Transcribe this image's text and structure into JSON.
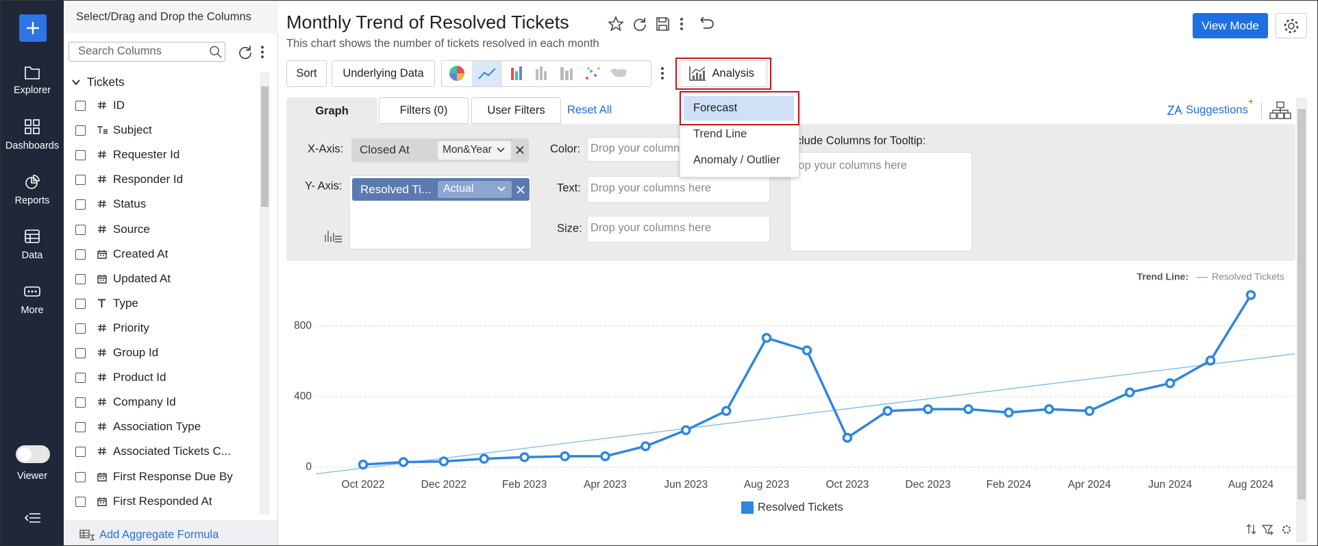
{
  "nav": {
    "items": [
      "Explorer",
      "Dashboards",
      "Reports",
      "Data",
      "More"
    ],
    "viewer": "Viewer"
  },
  "columns_panel": {
    "title": "Select/Drag and Drop the Columns",
    "search_placeholder": "Search Columns",
    "table": "Tickets",
    "columns": [
      {
        "kind": "number",
        "name": "ID"
      },
      {
        "kind": "text",
        "name": "Subject"
      },
      {
        "kind": "number",
        "name": "Requester Id"
      },
      {
        "kind": "number",
        "name": "Responder Id"
      },
      {
        "kind": "number",
        "name": "Status"
      },
      {
        "kind": "number",
        "name": "Source"
      },
      {
        "kind": "date",
        "name": "Created At"
      },
      {
        "kind": "date",
        "name": "Updated At"
      },
      {
        "kind": "string",
        "name": "Type"
      },
      {
        "kind": "number",
        "name": "Priority"
      },
      {
        "kind": "number",
        "name": "Group Id"
      },
      {
        "kind": "number",
        "name": "Product Id"
      },
      {
        "kind": "number",
        "name": "Company Id"
      },
      {
        "kind": "number",
        "name": "Association Type"
      },
      {
        "kind": "number",
        "name": "Associated Tickets C..."
      },
      {
        "kind": "date",
        "name": "First Response Due By"
      },
      {
        "kind": "date",
        "name": "First Responded At"
      }
    ],
    "footer": "Add Aggregate Formula"
  },
  "header": {
    "title": "Monthly Trend of Resolved Tickets",
    "subtitle": "This chart shows the number of tickets resolved in each month",
    "view_mode": "View Mode"
  },
  "toolbar": {
    "sort": "Sort",
    "underlying": "Underlying Data",
    "analysis": "Analysis"
  },
  "tabs": {
    "graph": "Graph",
    "filters": "Filters (0)",
    "user_filters": "User Filters",
    "reset": "Reset All",
    "suggestions": "Suggestions"
  },
  "config": {
    "x_axis": {
      "label": "X-Axis:",
      "column": "Closed At",
      "function": "Mon&Year"
    },
    "y_axis": {
      "label": "Y- Axis:",
      "column": "Resolved Ti...",
      "function": "Actual"
    },
    "color": {
      "label": "Color:",
      "placeholder": "Drop your columns here"
    },
    "text": {
      "label": "Text:",
      "placeholder": "Drop your columns here"
    },
    "size": {
      "label": "Size:",
      "placeholder": "Drop your columns here"
    },
    "tooltip": {
      "label": "Include Columns for Tooltip:",
      "placeholder": "Drop your columns here"
    }
  },
  "analysis_menu": [
    "Forecast",
    "Trend Line",
    "Anomaly / Outlier"
  ],
  "chart_data": {
    "type": "line",
    "categories": [
      "Oct 2022",
      null,
      "Dec 2022",
      null,
      "Feb 2023",
      null,
      "Apr 2023",
      null,
      "Jun 2023",
      null,
      "Aug 2023",
      null,
      "Oct 2023",
      null,
      "Dec 2023",
      null,
      "Feb 2024",
      null,
      "Apr 2024",
      null,
      "Jun 2024",
      null,
      "Aug 2024"
    ],
    "series": [
      {
        "name": "Resolved Tickets",
        "color": "#2e86de",
        "values": [
          15,
          29,
          33,
          48,
          57,
          62,
          62,
          119,
          210,
          319,
          733,
          662,
          167,
          319,
          329,
          329,
          310,
          329,
          319,
          424,
          476,
          605,
          976
        ]
      }
    ],
    "trend_line": {
      "label": "Trend Line:",
      "name": "Resolved Tickets",
      "color": "#7ab8ec",
      "values": [
        -5,
        612
      ]
    },
    "ylim": [
      -40,
      1100
    ],
    "yticks": [
      0,
      400,
      800
    ],
    "grid": true
  }
}
